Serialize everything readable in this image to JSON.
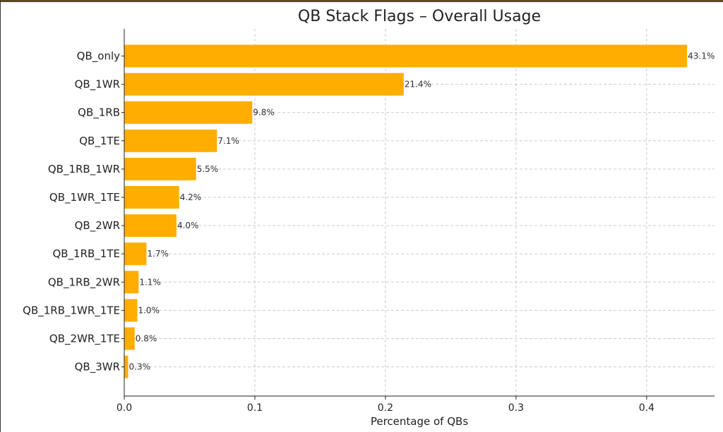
{
  "chart_data": {
    "type": "bar",
    "orientation": "horizontal",
    "title": "QB Stack Flags – Overall Usage",
    "xlabel": "Percentage of QBs",
    "ylabel": "",
    "categories": [
      "QB_only",
      "QB_1WR",
      "QB_1RB",
      "QB_1TE",
      "QB_1RB_1WR",
      "QB_1WR_1TE",
      "QB_2WR",
      "QB_1RB_1TE",
      "QB_1RB_2WR",
      "QB_1RB_1WR_1TE",
      "QB_2WR_1TE",
      "QB_3WR"
    ],
    "values": [
      0.431,
      0.214,
      0.098,
      0.071,
      0.055,
      0.042,
      0.04,
      0.017,
      0.011,
      0.01,
      0.008,
      0.003
    ],
    "data_labels": [
      "43.1%",
      "21.4%",
      "9.8%",
      "7.1%",
      "5.5%",
      "4.2%",
      "4.0%",
      "1.7%",
      "1.1%",
      "1.0%",
      "0.8%",
      "0.3%"
    ],
    "x_ticks": [
      "0.0",
      "0.1",
      "0.2",
      "0.3",
      "0.4"
    ],
    "x_tick_values": [
      0.0,
      0.1,
      0.2,
      0.3,
      0.4
    ],
    "xlim": [
      0,
      0.452
    ],
    "grid": true,
    "bar_color": "#FFAE00",
    "grid_color": "#cccccc"
  }
}
